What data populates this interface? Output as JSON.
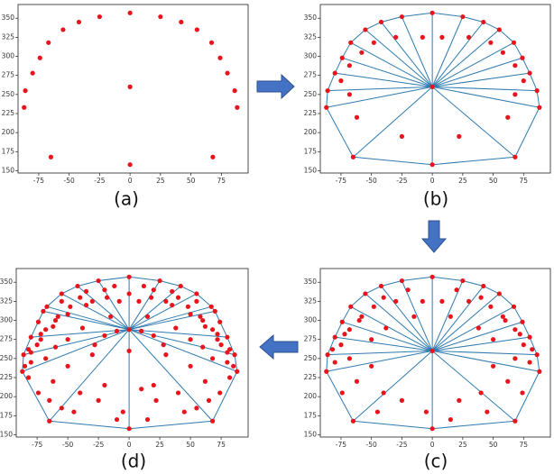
{
  "chart_data": [
    {
      "type": "scatter",
      "caption": "(a)",
      "mesh": false,
      "color": "#e8141c",
      "line_color": "#2f7bb0",
      "xlim": [
        -92,
        97
      ],
      "ylim": [
        147,
        368
      ],
      "xticks": [
        -75,
        -50,
        -25,
        0,
        25,
        50,
        75
      ],
      "yticks": [
        150,
        175,
        200,
        225,
        250,
        275,
        300,
        325,
        350
      ],
      "x": [
        -87,
        -86,
        -80,
        -74,
        -67,
        -55,
        -42,
        -25,
        0,
        25,
        42,
        55,
        67,
        74,
        80,
        86,
        88,
        68,
        0,
        -65,
        0
      ],
      "y": [
        233,
        255,
        278,
        298,
        318,
        335,
        345,
        352,
        357,
        352,
        345,
        335,
        318,
        298,
        278,
        255,
        233,
        168,
        158,
        168,
        260
      ]
    },
    {
      "type": "scatter",
      "caption": "(b)",
      "mesh": true,
      "color": "#e8141c",
      "line_color": "#2f7bb0",
      "xlim": [
        -92,
        97
      ],
      "ylim": [
        147,
        368
      ],
      "xticks": [
        -75,
        -50,
        -25,
        0,
        25,
        50,
        75
      ],
      "yticks": [
        150,
        175,
        200,
        225,
        250,
        275,
        300,
        325,
        350
      ],
      "x": [
        -87,
        -86,
        -80,
        -74,
        -67,
        -55,
        -42,
        -25,
        0,
        25,
        42,
        55,
        67,
        74,
        80,
        86,
        88,
        68,
        0,
        -65,
        0,
        -75,
        -68,
        -58,
        -48,
        -30,
        -8,
        8,
        30,
        48,
        58,
        68,
        75,
        -68,
        68,
        -62,
        62,
        -25,
        22
      ],
      "y": [
        233,
        255,
        278,
        298,
        318,
        335,
        345,
        352,
        357,
        352,
        345,
        335,
        318,
        298,
        278,
        255,
        233,
        168,
        158,
        168,
        260,
        268,
        288,
        305,
        318,
        325,
        325,
        325,
        325,
        318,
        305,
        288,
        268,
        250,
        250,
        220,
        220,
        195,
        195
      ]
    },
    {
      "type": "scatter",
      "caption": "(c)",
      "mesh": true,
      "color": "#e8141c",
      "line_color": "#2f7bb0",
      "xlim": [
        -92,
        97
      ],
      "ylim": [
        147,
        368
      ],
      "xticks": [
        -75,
        -50,
        -25,
        0,
        25,
        50,
        75
      ],
      "yticks": [
        150,
        175,
        200,
        225,
        250,
        275,
        300,
        325,
        350
      ],
      "x": [
        -87,
        -86,
        -80,
        -74,
        -67,
        -55,
        -42,
        -25,
        0,
        25,
        42,
        55,
        67,
        74,
        80,
        86,
        88,
        68,
        0,
        -65,
        0,
        -75,
        -68,
        -58,
        -48,
        -30,
        -8,
        8,
        30,
        48,
        58,
        68,
        75,
        -68,
        68,
        -62,
        62,
        -25,
        22,
        -80,
        80,
        -82,
        82,
        -72,
        72,
        -60,
        60,
        -40,
        40,
        -20,
        20,
        -50,
        50,
        -38,
        38,
        -15,
        15,
        -74,
        74,
        -45,
        45,
        -5,
        15,
        -40,
        40,
        -50,
        50
      ],
      "y": [
        233,
        255,
        278,
        298,
        318,
        335,
        345,
        352,
        357,
        352,
        345,
        335,
        318,
        298,
        278,
        255,
        233,
        168,
        158,
        168,
        260,
        268,
        288,
        305,
        318,
        325,
        325,
        325,
        325,
        318,
        305,
        288,
        268,
        250,
        250,
        220,
        220,
        195,
        195,
        245,
        245,
        262,
        262,
        282,
        282,
        300,
        300,
        330,
        330,
        340,
        340,
        275,
        275,
        290,
        290,
        305,
        305,
        205,
        205,
        180,
        180,
        180,
        170,
        205,
        205,
        240,
        240
      ]
    },
    {
      "type": "scatter",
      "caption": "(d)",
      "mesh": true,
      "color": "#e8141c",
      "line_color": "#2f7bb0",
      "xlim": [
        -92,
        97
      ],
      "ylim": [
        147,
        368
      ],
      "xticks": [
        -75,
        -50,
        -25,
        0,
        25,
        50,
        75
      ],
      "yticks": [
        150,
        175,
        200,
        225,
        250,
        275,
        300,
        325,
        350
      ],
      "x": [
        -87,
        -86,
        -80,
        -74,
        -67,
        -55,
        -42,
        -25,
        0,
        25,
        42,
        55,
        67,
        74,
        80,
        86,
        88,
        68,
        0,
        -65,
        0,
        -75,
        -68,
        -58,
        -48,
        -30,
        -8,
        8,
        30,
        48,
        58,
        68,
        75,
        -68,
        68,
        -62,
        62,
        -25,
        22,
        -80,
        80,
        -82,
        82,
        -72,
        72,
        -60,
        60,
        -40,
        40,
        -20,
        20,
        -50,
        50,
        -38,
        38,
        -15,
        15,
        -74,
        74,
        -45,
        45,
        -5,
        15,
        -40,
        40,
        -50,
        50,
        28,
        20,
        10,
        0,
        -10,
        -20,
        -28,
        -85,
        -80,
        -72,
        -62,
        -50,
        -35,
        -18,
        0,
        18,
        35,
        50,
        62,
        72,
        80,
        85,
        -70,
        -55,
        -35,
        -12,
        12,
        35,
        55,
        70,
        -82,
        82,
        -60,
        60,
        -30,
        30,
        -65,
        65,
        -20,
        20,
        -55,
        55,
        -10,
        10
      ],
      "y": [
        233,
        255,
        278,
        298,
        318,
        335,
        345,
        352,
        357,
        352,
        345,
        335,
        318,
        298,
        278,
        255,
        233,
        168,
        158,
        168,
        260,
        268,
        288,
        305,
        318,
        325,
        325,
        325,
        325,
        318,
        305,
        288,
        268,
        250,
        250,
        220,
        220,
        195,
        195,
        245,
        245,
        262,
        262,
        282,
        282,
        300,
        300,
        330,
        330,
        340,
        340,
        275,
        275,
        290,
        290,
        305,
        305,
        205,
        205,
        180,
        180,
        180,
        170,
        205,
        205,
        240,
        240,
        268,
        280,
        286,
        288,
        286,
        280,
        268,
        240,
        258,
        275,
        292,
        308,
        320,
        330,
        335,
        330,
        320,
        308,
        292,
        275,
        258,
        240,
        312,
        325,
        338,
        345,
        345,
        338,
        325,
        312,
        225,
        225,
        265,
        265,
        255,
        255,
        195,
        195,
        215,
        215,
        185,
        185,
        170,
        210
      ]
    }
  ]
}
